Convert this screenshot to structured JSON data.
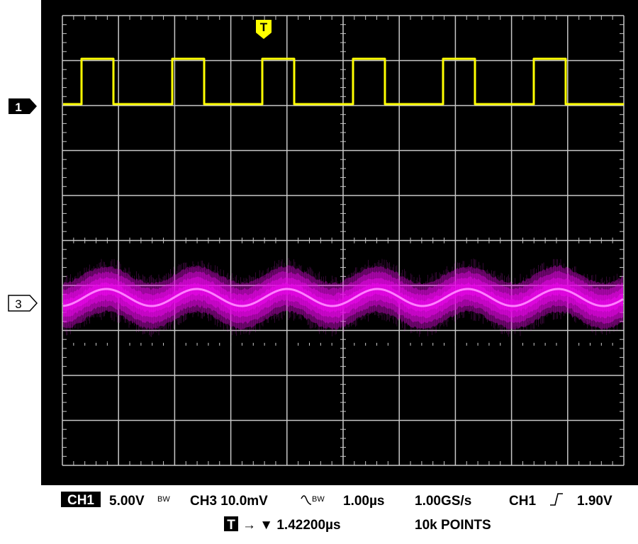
{
  "screen": {
    "trigger_marker": "T",
    "channel_markers": [
      "1",
      "3"
    ]
  },
  "status": {
    "line1": {
      "ch1_label": "CH1",
      "ch1_scale": "5.00V",
      "ch1_bw": "BW",
      "ch3": "CH3 10.0mV",
      "ch3_bw": "BW",
      "timebase": "1.00µs",
      "sample_rate": "1.00GS/s",
      "trigger_source": "CH1",
      "trigger_level": "1.90V"
    },
    "line2": {
      "trigger_icon": "T",
      "trigger_position": "→ ▼ 1.42200µs",
      "record_length": "10k POINTS"
    }
  }
}
